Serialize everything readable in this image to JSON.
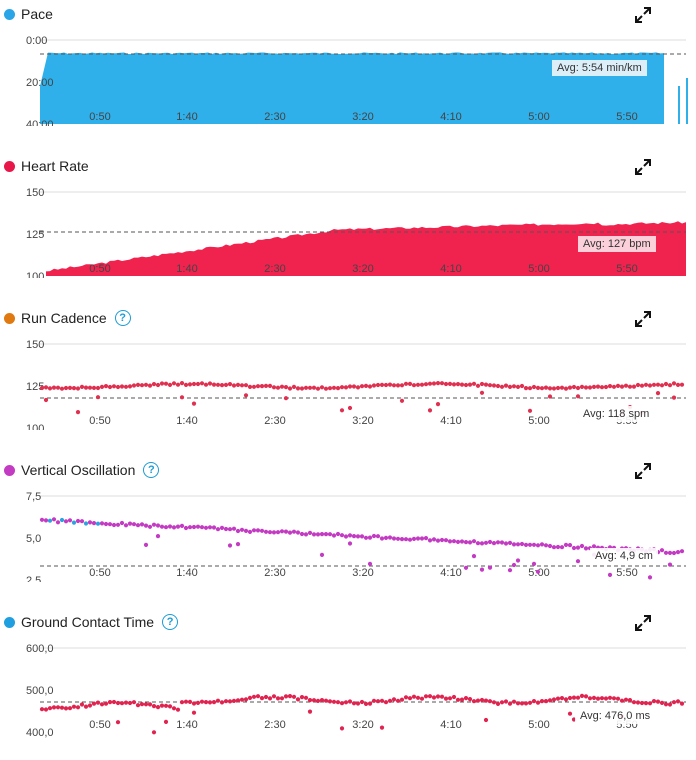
{
  "colors": {
    "pace": "#30b0ea",
    "hr": "#f0234f",
    "cadence": "#e03050",
    "cadence_dot": "#e07a10",
    "vo": "#c33bc3",
    "vo_alt": "#30a0e0",
    "gct": "#e0234f",
    "gct_dot": "#1f9fe0",
    "help": "#1b9bd7"
  },
  "x_ticks": [
    "0:50",
    "1:40",
    "2:30",
    "3:20",
    "4:10",
    "5:00",
    "5:50"
  ],
  "panels": [
    {
      "id": "pace",
      "title": "Pace",
      "dot_color": "#2aa6e8",
      "help": false,
      "y_ticks": [
        "0:00",
        "20:00",
        "40:00"
      ],
      "avg_label": "Avg: 5:54 min/km"
    },
    {
      "id": "hr",
      "title": "Heart Rate",
      "dot_color": "#e8174a",
      "help": false,
      "y_ticks": [
        "150",
        "125",
        "100"
      ],
      "avg_label": "Avg: 127 bpm"
    },
    {
      "id": "cadence",
      "title": "Run Cadence",
      "dot_color": "#e07a10",
      "help": true,
      "y_ticks": [
        "150",
        "125",
        "100"
      ],
      "avg_label": "Avg: 118 spm"
    },
    {
      "id": "vo",
      "title": "Vertical Oscillation",
      "dot_color": "#c33bc3",
      "help": true,
      "y_ticks": [
        "7,5",
        "5,0",
        "2,5"
      ],
      "avg_label": "Avg: 4,9 cm"
    },
    {
      "id": "gct",
      "title": "Ground Contact Time",
      "dot_color": "#1f9fe0",
      "help": true,
      "y_ticks": [
        "600,0",
        "500,0",
        "400,0"
      ],
      "avg_label": "Avg: 476,0 ms"
    }
  ],
  "chart_data": [
    {
      "type": "area",
      "title": "Pace",
      "ylim": [
        "0:00",
        "40:00"
      ],
      "x": [
        "0:50",
        "1:40",
        "2:30",
        "3:20",
        "4:10",
        "5:00",
        "5:50"
      ],
      "y": [
        "6:30",
        "6:20",
        "6:20",
        "6:10",
        "6:20",
        "6:10",
        "6:00"
      ],
      "avg": "5:54 min/km"
    },
    {
      "type": "area",
      "title": "Heart Rate",
      "ylim": [
        100,
        150
      ],
      "x": [
        "0:50",
        "1:40",
        "2:30",
        "3:20",
        "4:10",
        "5:00",
        "5:50"
      ],
      "y": [
        112,
        121,
        124,
        126,
        131,
        132,
        133
      ],
      "avg": 127
    },
    {
      "type": "scatter",
      "title": "Run Cadence",
      "ylim": [
        100,
        150
      ],
      "x": [
        "0:50",
        "1:40",
        "2:30",
        "3:20",
        "4:10",
        "5:00",
        "5:50"
      ],
      "y": [
        125,
        123,
        121,
        122,
        124,
        125,
        122
      ],
      "avg": 118
    },
    {
      "type": "scatter",
      "title": "Vertical Oscillation",
      "ylim": [
        2.5,
        7.5
      ],
      "x": [
        "0:50",
        "1:40",
        "2:30",
        "3:20",
        "4:10",
        "5:00",
        "5:50"
      ],
      "y": [
        6.4,
        5.7,
        5.4,
        5.3,
        5.1,
        4.8,
        4.7
      ],
      "avg": 4.9
    },
    {
      "type": "scatter",
      "title": "Ground Contact Time",
      "ylim": [
        400,
        600
      ],
      "x": [
        "0:50",
        "1:40",
        "2:30",
        "3:20",
        "4:10",
        "5:00",
        "5:50"
      ],
      "y": [
        465,
        468,
        478,
        480,
        472,
        470,
        476
      ],
      "avg": 476.0
    }
  ]
}
